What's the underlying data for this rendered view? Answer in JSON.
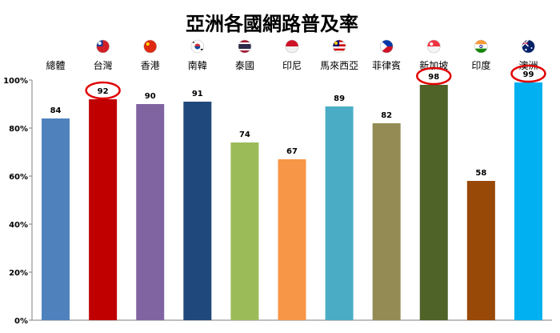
{
  "chart_data": {
    "type": "bar",
    "title": "亞洲各國網路普及率",
    "xlabel": "",
    "ylabel": "",
    "ylim": [
      0,
      100
    ],
    "yticks": [
      "0%",
      "20%",
      "40%",
      "60%",
      "80%",
      "100%"
    ],
    "grid": false,
    "categories": [
      "總體",
      "台灣",
      "香港",
      "南韓",
      "泰國",
      "印尼",
      "馬來西亞",
      "菲律賓",
      "新加坡",
      "印度",
      "澳洲"
    ],
    "values": [
      84,
      92,
      90,
      91,
      74,
      67,
      89,
      82,
      98,
      58,
      99
    ],
    "value_labels": [
      "84",
      "92",
      "90",
      "91",
      "74",
      "67",
      "89",
      "82",
      "98",
      "58",
      "99"
    ],
    "colors": [
      "#4f81bd",
      "#c00000",
      "#8064a2",
      "#1f497d",
      "#9bbb59",
      "#f79646",
      "#4bacc6",
      "#948a54",
      "#4f6228",
      "#984807",
      "#00b0f0"
    ],
    "flags": [
      "",
      "taiwan-flag-icon",
      "china-flag-icon",
      "south-korea-flag-icon",
      "thailand-flag-icon",
      "indonesia-flag-icon",
      "malaysia-flag-icon",
      "philippines-flag-icon",
      "singapore-flag-icon",
      "india-flag-icon",
      "australia-flag-icon"
    ],
    "highlighted": [
      "台灣",
      "新加坡",
      "澳洲"
    ],
    "highlight_color": "#e00000"
  }
}
